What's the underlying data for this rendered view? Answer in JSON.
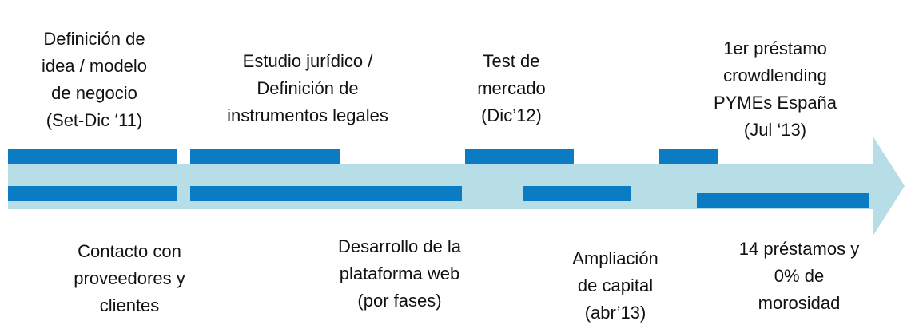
{
  "top_milestones": [
    {
      "lines": [
        "Definición de",
        "idea / modelo",
        "de negocio",
        "(Set-Dic ‘11)"
      ]
    },
    {
      "lines": [
        "Estudio jurídico /",
        "Definición de",
        "instrumentos legales"
      ]
    },
    {
      "lines": [
        "Test de",
        "mercado",
        "(Dic’12)"
      ]
    },
    {
      "lines": [
        "1er préstamo",
        "crowdlending",
        "PYMEs España",
        "(Jul ‘13)"
      ]
    }
  ],
  "bottom_milestones": [
    {
      "lines": [
        "Contacto con",
        "proveedores y",
        "clientes"
      ]
    },
    {
      "lines": [
        "Desarrollo de la",
        "plataforma web",
        "(por fases)"
      ]
    },
    {
      "lines": [
        "Ampliación",
        "de capital",
        "(abr’13)"
      ]
    },
    {
      "lines": [
        "14 préstamos y",
        "0% de",
        "morosidad"
      ]
    }
  ]
}
